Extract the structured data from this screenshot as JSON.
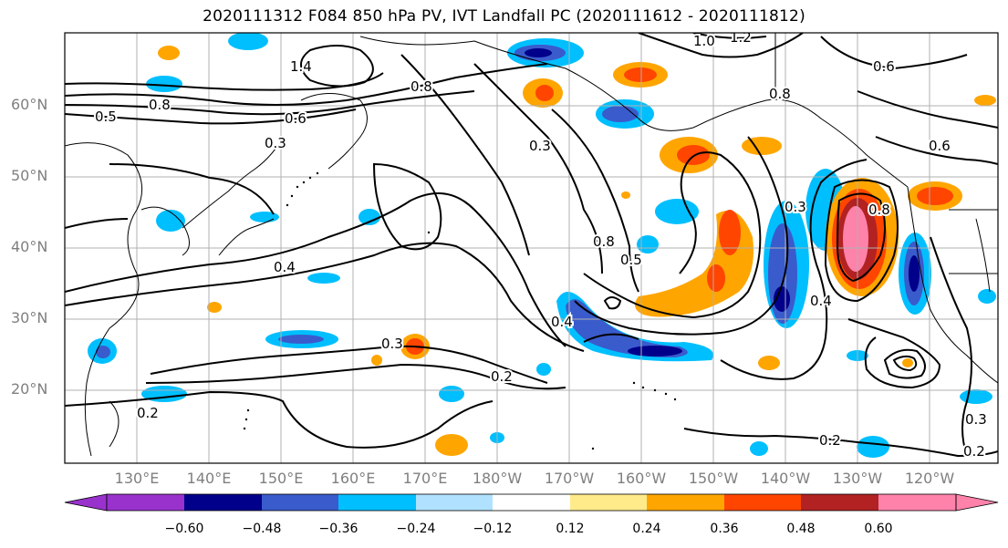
{
  "title": "2020111312 F084 850 hPa PV, IVT Landfall PC (2020111612 - 2020111812)",
  "map": {
    "lat_labels": [
      "60°N",
      "50°N",
      "40°N",
      "30°N",
      "20°N"
    ],
    "lon_labels": [
      "130°E",
      "140°E",
      "150°E",
      "160°E",
      "170°E",
      "180°W",
      "170°W",
      "160°W",
      "150°W",
      "140°W",
      "130°W",
      "120°W"
    ],
    "contour_labels": [
      "0.5",
      "0.8",
      "0.3",
      "0.6",
      "1.4",
      "0.8",
      "1.0",
      "1.2",
      "0.6",
      "0.4",
      "0.2",
      "0.3",
      "0.2",
      "0.3",
      "0.4",
      "0.8",
      "0.5",
      "0.8",
      "0.4",
      "0.3",
      "0.2",
      "0.2",
      "0.3",
      "0.8",
      "0.6"
    ],
    "shading_colors": [
      "#9932CC",
      "#00008B",
      "#3A5BCC",
      "#00BFFF",
      "#B0E2FF",
      "#FFFFFF",
      "#FFEB8A",
      "#FFA500",
      "#FF4500",
      "#B22222",
      "#FF82AB"
    ]
  },
  "colorbar": {
    "ticks": [
      "−0.60",
      "−0.48",
      "−0.36",
      "−0.24",
      "−0.12",
      "0.12",
      "0.24",
      "0.36",
      "0.48",
      "0.60"
    ]
  }
}
